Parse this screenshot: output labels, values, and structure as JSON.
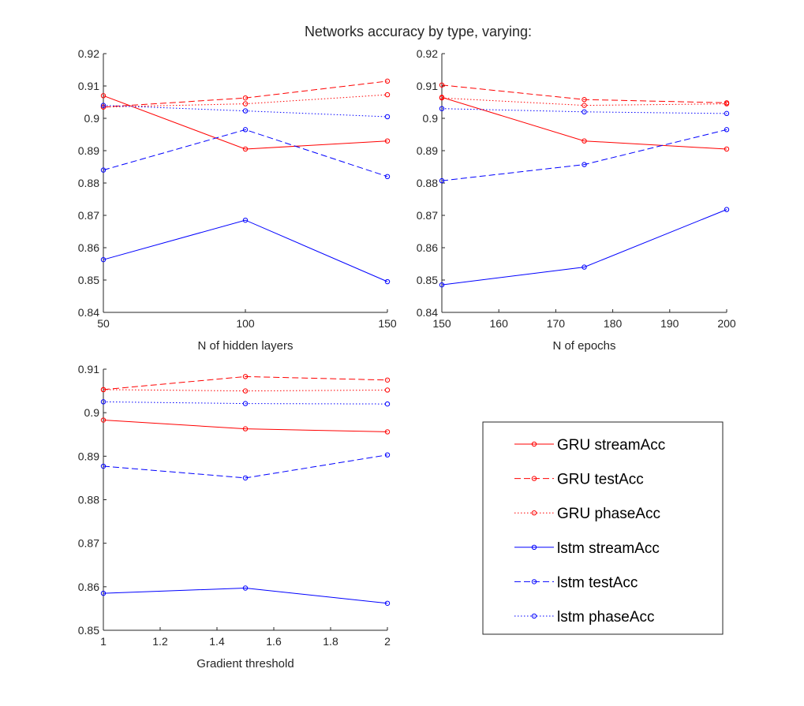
{
  "figure_title": "Networks accuracy by type, varying:",
  "legend_entries": [
    {
      "name": "GRU streamAcc",
      "color": "#ff0000",
      "style": "solid"
    },
    {
      "name": "GRU testAcc",
      "color": "#ff0000",
      "style": "dashed"
    },
    {
      "name": "GRU phaseAcc",
      "color": "#ff0000",
      "style": "dotted"
    },
    {
      "name": "lstm streamAcc",
      "color": "#0000ff",
      "style": "solid"
    },
    {
      "name": "lstm testAcc",
      "color": "#0000ff",
      "style": "dashed"
    },
    {
      "name": "lstm phaseAcc",
      "color": "#0000ff",
      "style": "dotted"
    }
  ],
  "chart_data": [
    {
      "type": "line",
      "xlabel": "N of hidden layers",
      "ylabel": "",
      "x": [
        50,
        100,
        150
      ],
      "xlim": [
        50,
        150
      ],
      "ylim": [
        0.84,
        0.92
      ],
      "xticks": [
        50,
        100,
        150
      ],
      "yticks": [
        0.84,
        0.85,
        0.86,
        0.87,
        0.88,
        0.89,
        0.9,
        0.91,
        0.92
      ],
      "series": [
        {
          "name": "GRU streamAcc",
          "values": [
            0.907,
            0.8905,
            0.893
          ]
        },
        {
          "name": "GRU testAcc",
          "values": [
            0.9035,
            0.9063,
            0.9115
          ]
        },
        {
          "name": "GRU phaseAcc",
          "values": [
            0.9035,
            0.9045,
            0.9073
          ]
        },
        {
          "name": "lstm streamAcc",
          "values": [
            0.8563,
            0.8685,
            0.8495
          ]
        },
        {
          "name": "lstm testAcc",
          "values": [
            0.884,
            0.8965,
            0.882
          ]
        },
        {
          "name": "lstm phaseAcc",
          "values": [
            0.904,
            0.9023,
            0.9005
          ]
        }
      ]
    },
    {
      "type": "line",
      "xlabel": "N of epochs",
      "ylabel": "",
      "x": [
        150,
        175,
        200
      ],
      "xlim": [
        150,
        200
      ],
      "ylim": [
        0.84,
        0.92
      ],
      "xticks": [
        150,
        160,
        170,
        180,
        190,
        200
      ],
      "yticks": [
        0.84,
        0.85,
        0.86,
        0.87,
        0.88,
        0.89,
        0.9,
        0.91,
        0.92
      ],
      "series": [
        {
          "name": "GRU streamAcc",
          "values": [
            0.9065,
            0.893,
            0.8905
          ]
        },
        {
          "name": "GRU testAcc",
          "values": [
            0.9103,
            0.9058,
            0.9048
          ]
        },
        {
          "name": "GRU phaseAcc",
          "values": [
            0.9063,
            0.904,
            0.9045
          ]
        },
        {
          "name": "lstm streamAcc",
          "values": [
            0.8485,
            0.854,
            0.8718
          ]
        },
        {
          "name": "lstm testAcc",
          "values": [
            0.8807,
            0.8857,
            0.8965
          ]
        },
        {
          "name": "lstm phaseAcc",
          "values": [
            0.903,
            0.902,
            0.9015
          ]
        }
      ]
    },
    {
      "type": "line",
      "xlabel": "Gradient threshold",
      "ylabel": "",
      "x": [
        1,
        1.5,
        2
      ],
      "xlim": [
        1,
        2
      ],
      "ylim": [
        0.85,
        0.91
      ],
      "xticks": [
        1,
        1.2,
        1.4,
        1.6,
        1.8,
        2
      ],
      "yticks": [
        0.85,
        0.86,
        0.87,
        0.88,
        0.89,
        0.9,
        0.91
      ],
      "series": [
        {
          "name": "GRU streamAcc",
          "values": [
            0.8983,
            0.8963,
            0.8956
          ]
        },
        {
          "name": "GRU testAcc",
          "values": [
            0.9053,
            0.9083,
            0.9075
          ]
        },
        {
          "name": "GRU phaseAcc",
          "values": [
            0.9053,
            0.905,
            0.9052
          ]
        },
        {
          "name": "lstm streamAcc",
          "values": [
            0.8585,
            0.8597,
            0.8562
          ]
        },
        {
          "name": "lstm testAcc",
          "values": [
            0.8877,
            0.885,
            0.8903
          ]
        },
        {
          "name": "lstm phaseAcc",
          "values": [
            0.9025,
            0.9021,
            0.902
          ]
        }
      ]
    }
  ]
}
